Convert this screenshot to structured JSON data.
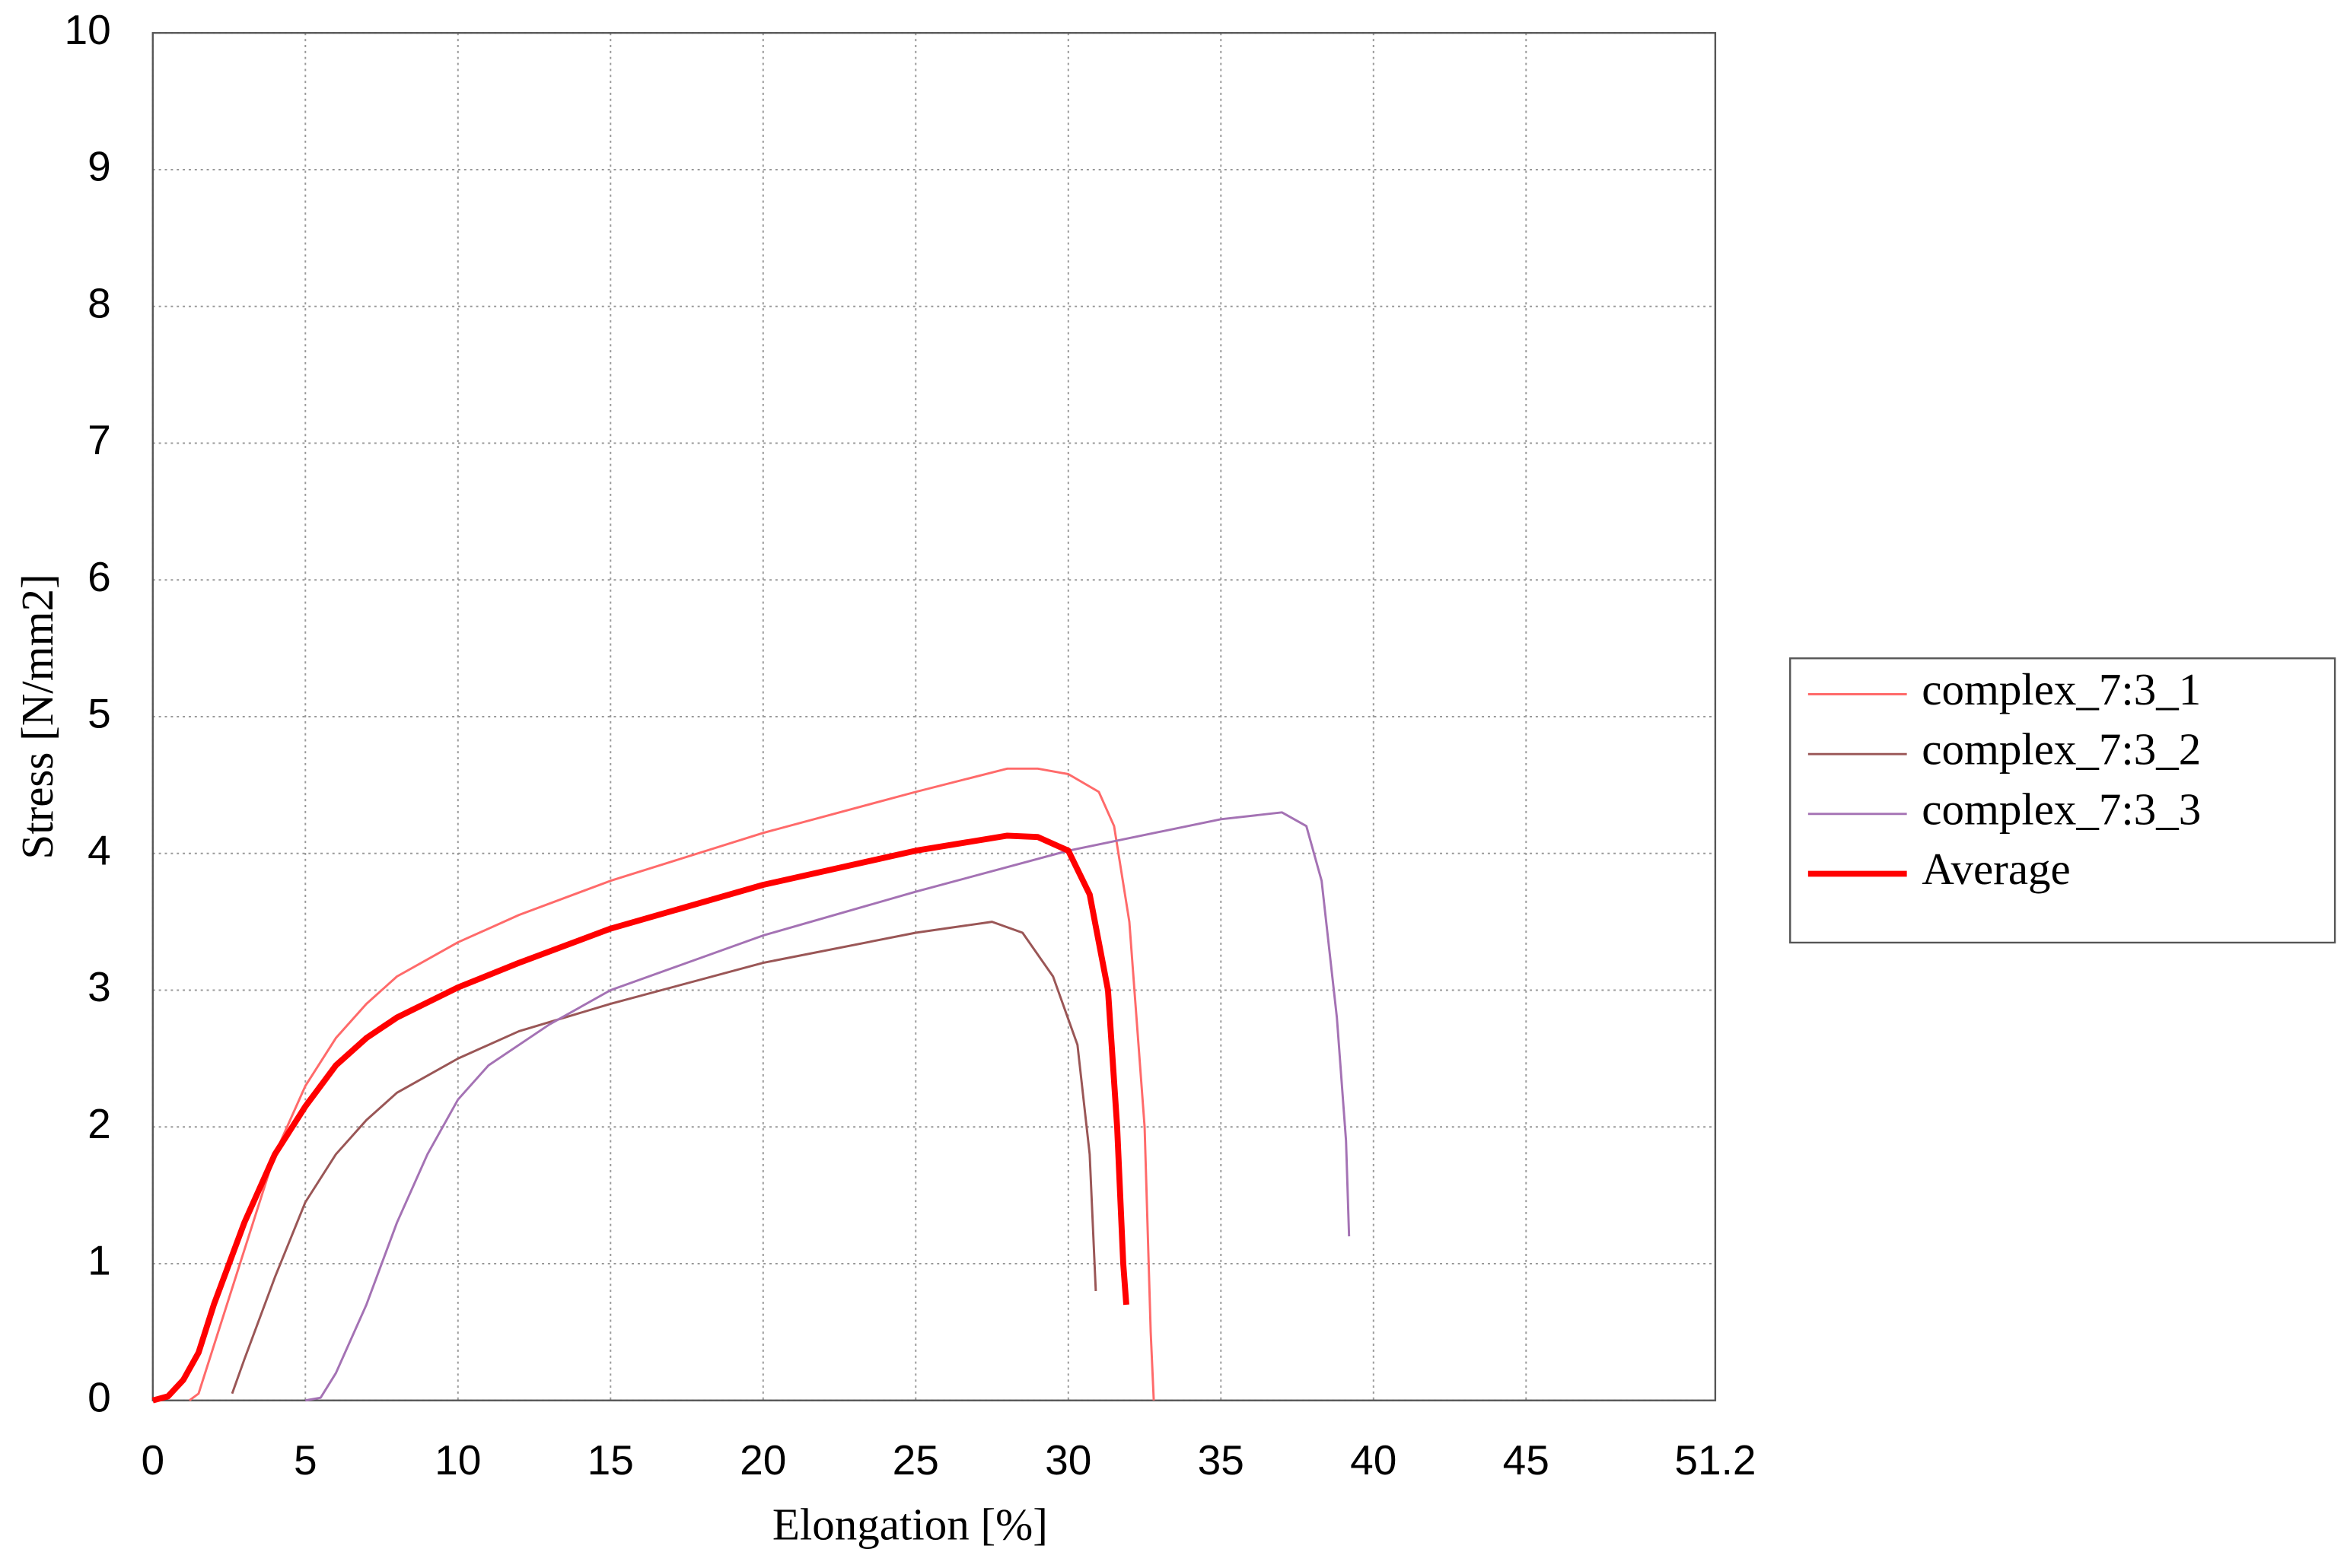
{
  "chart_data": {
    "type": "line",
    "x_label": "Elongation [%]",
    "y_label": "Stress [N/mm2]",
    "xlim": [
      0,
      51.2
    ],
    "xticks": [
      0,
      5,
      10,
      15,
      20,
      25,
      30,
      35,
      40,
      45,
      51.2
    ],
    "ylim": [
      0,
      10
    ],
    "yticks": [
      0,
      1,
      2,
      3,
      4,
      5,
      6,
      7,
      8,
      9,
      10
    ],
    "grid": true,
    "legend": "right",
    "series": [
      {
        "name": "complex_7:3_1",
        "color": "#ff6a6a",
        "width": 1.5,
        "x": [
          1.2,
          1.5,
          2,
          3,
          4,
          5,
          6,
          7,
          8,
          10,
          12,
          15,
          20,
          25,
          28,
          29,
          30,
          31,
          31.5,
          32,
          32.5,
          32.7,
          32.8
        ],
        "values": [
          0,
          0.05,
          0.4,
          1.1,
          1.8,
          2.3,
          2.65,
          2.9,
          3.1,
          3.35,
          3.55,
          3.8,
          4.15,
          4.45,
          4.62,
          4.62,
          4.58,
          4.45,
          4.2,
          3.5,
          2.0,
          0.5,
          0
        ]
      },
      {
        "name": "complex_7:3_2",
        "color": "#9a5656",
        "width": 1.5,
        "x": [
          2.6,
          3,
          4,
          5,
          6,
          7,
          8,
          10,
          12,
          15,
          20,
          25,
          27.5,
          28.5,
          29.5,
          30.3,
          30.7,
          30.9
        ],
        "values": [
          0.05,
          0.3,
          0.9,
          1.45,
          1.8,
          2.05,
          2.25,
          2.5,
          2.7,
          2.9,
          3.2,
          3.42,
          3.5,
          3.42,
          3.1,
          2.6,
          1.8,
          0.8
        ]
      },
      {
        "name": "complex_7:3_3",
        "color": "#a472b4",
        "width": 1.5,
        "x": [
          5,
          5.5,
          6,
          7,
          8,
          9,
          10,
          11,
          13,
          15,
          20,
          25,
          30,
          35,
          37,
          37.8,
          38.3,
          38.8,
          39.1,
          39.2
        ],
        "values": [
          0,
          0.02,
          0.2,
          0.7,
          1.3,
          1.8,
          2.2,
          2.45,
          2.75,
          3.0,
          3.4,
          3.72,
          4.02,
          4.25,
          4.3,
          4.2,
          3.8,
          2.8,
          1.9,
          1.2
        ]
      },
      {
        "name": "Average",
        "color": "#ff0000",
        "width": 4,
        "x": [
          0,
          0.5,
          1,
          1.5,
          2,
          3,
          4,
          5,
          6,
          7,
          8,
          10,
          12,
          15,
          20,
          25,
          28,
          29,
          30,
          30.7,
          31.3,
          31.6,
          31.8,
          31.9
        ],
        "values": [
          0,
          0.03,
          0.15,
          0.35,
          0.7,
          1.3,
          1.8,
          2.15,
          2.45,
          2.65,
          2.8,
          3.02,
          3.2,
          3.45,
          3.77,
          4.02,
          4.13,
          4.12,
          4.02,
          3.7,
          3.0,
          2.0,
          1.0,
          0.7
        ]
      }
    ]
  }
}
